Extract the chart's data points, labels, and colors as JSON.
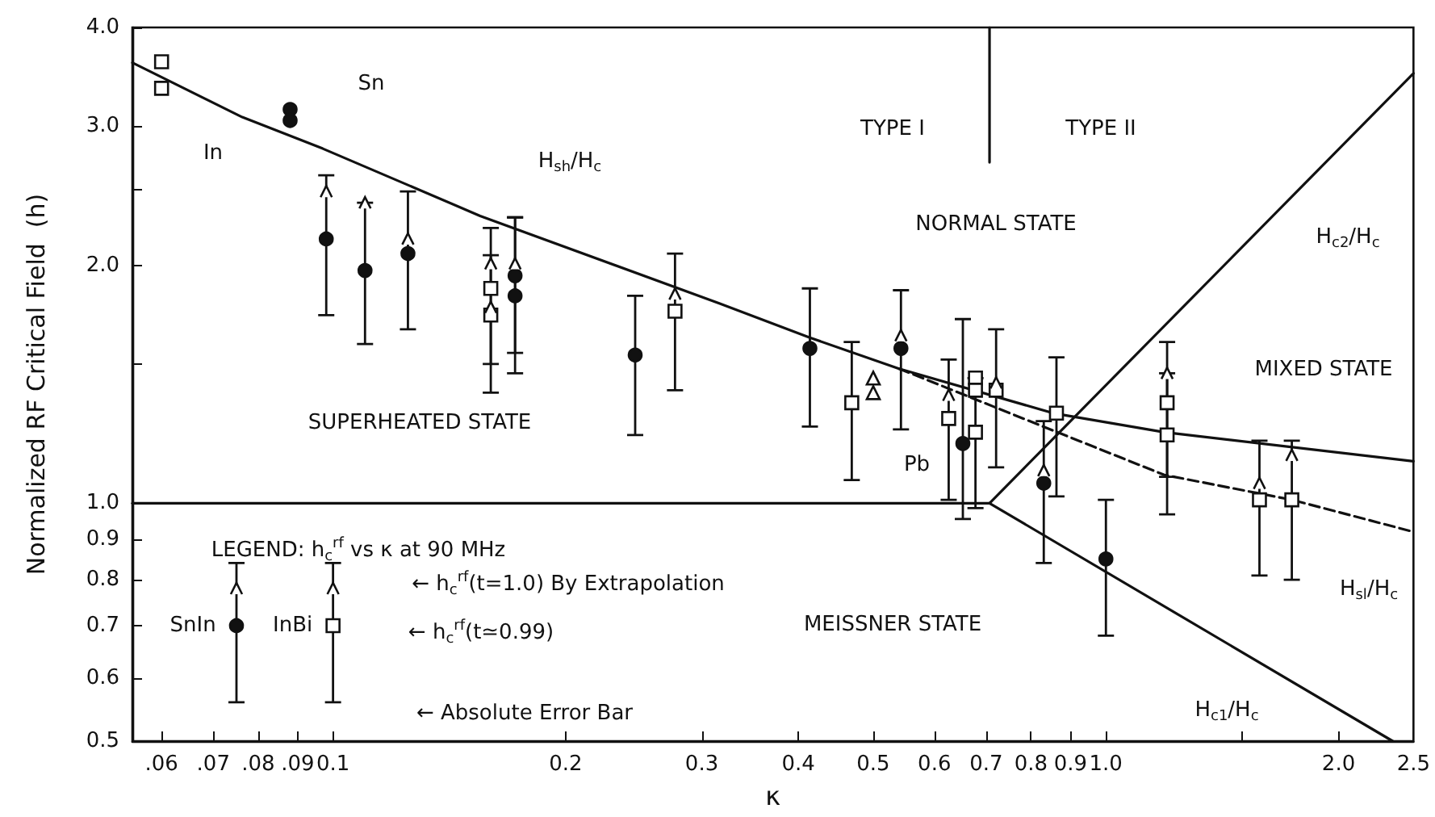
{
  "chart_data": {
    "type": "scatter",
    "xlabel": "κ",
    "ylabel": "Normalized RF Critical Field  (h)",
    "log": "xy",
    "xlim": [
      0.055,
      2.5
    ],
    "ylim": [
      0.5,
      4.0
    ],
    "xticks": [
      {
        "value": 0.06,
        "label": ".06"
      },
      {
        "value": 0.07,
        "label": ".07"
      },
      {
        "value": 0.08,
        "label": ".08"
      },
      {
        "value": 0.09,
        "label": ".09"
      },
      0.1,
      0.2,
      0.3,
      0.4,
      0.5,
      0.6,
      0.7,
      0.8,
      0.9,
      {
        "value": 1.0,
        "label": "1.0"
      },
      {
        "value": 1.5,
        "label": null
      },
      {
        "value": 2.0,
        "label": "2.0"
      },
      2.5
    ],
    "yticks": [
      0.5,
      0.6,
      0.7,
      0.8,
      0.9,
      {
        "value": 1.0,
        "label": "1.0"
      },
      {
        "value": 1.5,
        "label": null
      },
      {
        "value": 2.0,
        "label": "2.0"
      },
      {
        "value": 2.5,
        "label": null
      },
      {
        "value": 3.0,
        "label": "3.0"
      },
      {
        "value": 4.0,
        "label": "4.0"
      }
    ],
    "series": [
      {
        "type": "line",
        "color": "#111111",
        "line_style": "solid",
        "x": [
          0.055,
          0.0763,
          0.097,
          0.155,
          0.316,
          0.414,
          0.54,
          0.855,
          1.19,
          2.5
        ],
        "values": [
          3.61,
          3.08,
          2.81,
          2.31,
          1.79,
          1.62,
          1.48,
          1.3,
          1.23,
          1.13
        ]
      },
      {
        "type": "line",
        "color": "#111111",
        "line_style": "dashed",
        "x": [
          0.54,
          0.83,
          1.19,
          1.74,
          2.5
        ],
        "values": [
          1.48,
          1.25,
          1.086,
          1.01,
          0.92
        ]
      },
      {
        "type": "line",
        "color": "#111111",
        "line_style": "solid",
        "x": [
          0.707,
          2.5
        ],
        "values": [
          1.0,
          3.5
        ]
      },
      {
        "type": "line",
        "color": "#111111",
        "line_style": "solid",
        "x": [
          0.707,
          2.35
        ],
        "values": [
          1.0,
          0.5
        ]
      },
      {
        "type": "line",
        "color": "#111111",
        "line_style": "solid",
        "x": [
          0.055,
          0.707
        ],
        "values": [
          1.0,
          1.0
        ]
      },
      {
        "type": "line",
        "color": "#111111",
        "line_style": "solid",
        "x": [
          0.707,
          0.707
        ],
        "values": [
          4.0,
          2.7
        ]
      },
      {
        "marker": "circle",
        "color": "#111111",
        "x": [
          0.088,
          0.088,
          0.098,
          0.11,
          0.125,
          0.172,
          0.172,
          0.246,
          0.414,
          0.543,
          0.653,
          0.831,
          1.0
        ],
        "values": [
          3.15,
          3.05,
          2.16,
          1.97,
          2.07,
          1.94,
          1.83,
          1.54,
          1.57,
          1.57,
          1.19,
          1.06,
          0.85
        ],
        "errors": [
          null,
          null,
          [
            1.73,
            2.6
          ],
          [
            1.59,
            2.4
          ],
          [
            1.66,
            2.48
          ],
          [
            1.55,
            2.3
          ],
          [
            1.46,
            2.3
          ],
          [
            1.22,
            1.83
          ],
          [
            1.25,
            1.87
          ],
          [
            1.24,
            1.86
          ],
          [
            0.955,
            1.71
          ],
          [
            0.84,
            1.27
          ],
          [
            0.68,
            1.01
          ]
        ]
      },
      {
        "marker": "square",
        "color": "#111111",
        "x": [
          0.06,
          0.06,
          0.16,
          0.16,
          0.277,
          0.469,
          0.626,
          0.678,
          0.678,
          0.678,
          0.721,
          0.863,
          1.2,
          1.2,
          1.58,
          1.74
        ],
        "values": [
          3.62,
          3.35,
          1.87,
          1.73,
          1.75,
          1.34,
          1.28,
          1.44,
          1.39,
          1.23,
          1.39,
          1.3,
          1.34,
          1.22,
          1.01,
          1.01
        ],
        "errors": [
          null,
          null,
          [
            1.5,
            2.23
          ],
          [
            1.38,
            2.06
          ],
          [
            1.39,
            2.07
          ],
          [
            1.07,
            1.6
          ],
          [
            1.01,
            1.52
          ],
          null,
          null,
          [
            0.986,
            1.44
          ],
          [
            1.11,
            1.66
          ],
          [
            1.02,
            1.53
          ],
          [
            1.08,
            1.6
          ],
          [
            0.968,
            1.46
          ],
          [
            0.81,
            1.2
          ],
          [
            0.8,
            1.2
          ]
        ]
      },
      {
        "marker": "triangle",
        "color": "#111111",
        "x": [
          0.5,
          0.5
        ],
        "values": [
          1.44,
          1.38
        ]
      },
      {
        "marker": "cross",
        "color": "#111111",
        "x": [
          0.098,
          0.11,
          0.125,
          0.16,
          0.16,
          0.172,
          0.277,
          0.543,
          0.626,
          0.721,
          0.831,
          1.2,
          1.58,
          1.74,
          0.075,
          0.1
        ],
        "values": [
          2.48,
          2.4,
          2.16,
          2.01,
          1.77,
          2.01,
          1.84,
          1.63,
          1.37,
          1.42,
          1.1,
          1.46,
          1.06,
          1.15,
          0.78,
          0.78
        ]
      },
      {
        "name": "SnIn",
        "marker": "circle",
        "color": "#111111",
        "x": [
          0.075
        ],
        "values": [
          0.7
        ],
        "errors": [
          [
            0.56,
            0.84
          ]
        ]
      },
      {
        "name": "InBi",
        "marker": "square",
        "color": "#111111",
        "x": [
          0.1
        ],
        "values": [
          0.7
        ],
        "errors": [
          [
            0.56,
            0.84
          ]
        ]
      }
    ],
    "annotations": [
      "TYPE I",
      "TYPE II",
      "NORMAL STATE",
      "SUPERHEATED STATE",
      "MIXED STATE",
      "MEISSNER STATE",
      "Sn",
      "In",
      "Pb",
      "H$_{sh}$/H$_{c}$",
      "H$_{c2}$/H$_{c}$",
      "H$_{sl}$/H$_{c}$",
      "H$_{c1}$/H$_{c}$",
      "LEGEND: h$_{c}$$^{rf}$ vs κ at 90 MHz",
      "← h$_{c}$$^{rf}$(t=1.0) By Extrapolation",
      "← h$_{c}$$^{rf}$(t≃0.99)",
      "← Absolute Error Bar"
    ]
  }
}
